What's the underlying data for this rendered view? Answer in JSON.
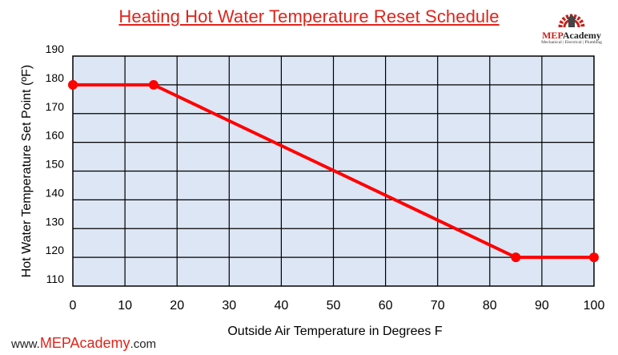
{
  "chart_data": {
    "type": "line",
    "title": "Heating Hot Water Temperature Reset Schedule",
    "xlabel": "Outside Air Temperature in Degrees F",
    "ylabel": "Hot Water Temperature Set Point (ºF)",
    "xlim": [
      0,
      100
    ],
    "ylim": [
      110,
      190
    ],
    "x_ticks": [
      0,
      10,
      20,
      30,
      40,
      50,
      60,
      70,
      80,
      90,
      100
    ],
    "y_ticks": [
      110,
      120,
      130,
      140,
      150,
      160,
      170,
      180,
      190
    ],
    "grid": true,
    "series": [
      {
        "x": [
          0,
          15.5,
          85,
          100
        ],
        "y": [
          180,
          180,
          120,
          120
        ],
        "markers": true
      }
    ],
    "colors": {
      "line": "#ff0000",
      "plot_background": "#dce6f4",
      "grid": "#000000"
    }
  },
  "logo": {
    "name_red": "MEP",
    "name_dark": "Academy",
    "tagline": "Mechanical | Electrical | Plumbing",
    "icon": "gear-icon"
  },
  "footer": {
    "prefix": "www.",
    "brand": "MEPAcademy",
    "suffix": ".com"
  }
}
